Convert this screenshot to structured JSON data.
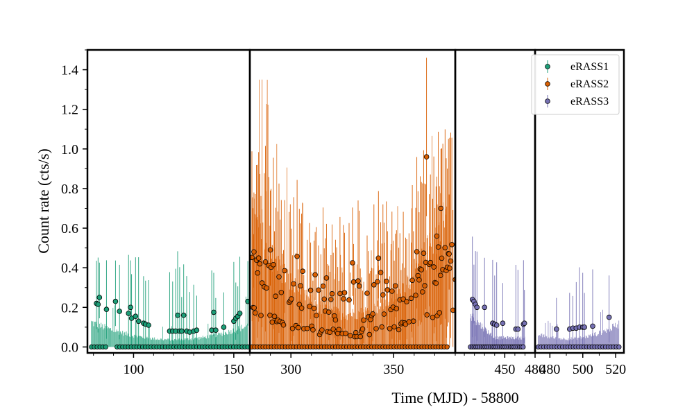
{
  "chart_data": {
    "type": "scatter",
    "title": "",
    "xlabel": "Time (MJD) - 58800",
    "ylabel": "Count rate (cts/s)",
    "ylim": [
      -0.03,
      1.5
    ],
    "yticks": [
      0.0,
      0.2,
      0.4,
      0.6,
      0.8,
      1.0,
      1.2,
      1.4
    ],
    "ytick_labels": [
      "0.0",
      "0.2",
      "0.4",
      "0.6",
      "0.8",
      "1.0",
      "1.2",
      "1.4"
    ],
    "grid": false,
    "legend_position": "top-right",
    "colors": {
      "eRASS1": "#1b9e77",
      "eRASS2": "#d95f02",
      "eRASS3": "#7570b3"
    },
    "panels": [
      {
        "series": "eRASS1",
        "xlim": [
          77,
          158
        ],
        "xticks": [
          100,
          150
        ],
        "xtick_labels": [
          "100",
          "150"
        ],
        "nonzero_points": [
          [
            81.5,
            0.22
          ],
          [
            82.3,
            0.215
          ],
          [
            83.0,
            0.25
          ],
          [
            86.5,
            0.19
          ],
          [
            91.0,
            0.23
          ],
          [
            93.0,
            0.18
          ],
          [
            97.5,
            0.17
          ],
          [
            98.5,
            0.2
          ],
          [
            99.0,
            0.145
          ],
          [
            101.0,
            0.155
          ],
          [
            102.5,
            0.13
          ],
          [
            105.0,
            0.12
          ],
          [
            106.0,
            0.115
          ],
          [
            107.5,
            0.11
          ],
          [
            118.0,
            0.08
          ],
          [
            119.5,
            0.08
          ],
          [
            121.0,
            0.08
          ],
          [
            122.0,
            0.16
          ],
          [
            123.0,
            0.08
          ],
          [
            124.0,
            0.08
          ],
          [
            125.0,
            0.16
          ],
          [
            126.5,
            0.08
          ],
          [
            128.0,
            0.075
          ],
          [
            130.0,
            0.08
          ],
          [
            131.5,
            0.085
          ],
          [
            139.0,
            0.085
          ],
          [
            140.0,
            0.175
          ],
          [
            141.0,
            0.085
          ],
          [
            145.0,
            0.1
          ],
          [
            150.0,
            0.13
          ],
          [
            151.0,
            0.145
          ],
          [
            152.0,
            0.155
          ],
          [
            153.0,
            0.17
          ],
          [
            157.0,
            0.23
          ]
        ],
        "zero_range": [
          79,
          157
        ],
        "zero_gap": [
          86.5,
          91
        ]
      },
      {
        "series": "eRASS2",
        "xlim": [
          280,
          380
        ],
        "xticks": [
          300,
          350
        ],
        "xtick_labels": [
          "300",
          "350"
        ],
        "peak_point": [
          366.0,
          0.96
        ],
        "notable_points": [
          [
            373.0,
            0.7
          ],
          [
            371.0,
            0.56
          ],
          [
            377.0,
            0.47
          ],
          [
            282.0,
            0.48
          ],
          [
            290.0,
            0.49
          ],
          [
            380.0,
            0.34
          ]
        ],
        "zero_range": [
          281,
          376
        ]
      },
      {
        "series": "eRASS3",
        "xlim": [
          401,
          480
        ],
        "xticks": [
          450,
          480
        ],
        "xtick_labels": [
          "450",
          "480"
        ],
        "nonzero_points": [
          [
            418.0,
            0.24
          ],
          [
            419.5,
            0.23
          ],
          [
            421.0,
            0.215
          ],
          [
            422.5,
            0.2
          ],
          [
            430.0,
            0.2
          ],
          [
            438.0,
            0.12
          ],
          [
            440.0,
            0.115
          ],
          [
            442.0,
            0.11
          ],
          [
            448.0,
            0.12
          ],
          [
            461.0,
            0.09
          ],
          [
            463.0,
            0.09
          ],
          [
            468.5,
            0.115
          ],
          [
            469.5,
            0.12
          ]
        ],
        "zero_range": [
          416,
          470
        ]
      },
      {
        "series": "eRASS3",
        "xlim": [
          471,
          525
        ],
        "xticks": [
          480,
          500,
          520
        ],
        "xtick_labels": [
          "480",
          "500",
          "520"
        ],
        "nonzero_points": [
          [
            484.0,
            0.09
          ],
          [
            492.0,
            0.09
          ],
          [
            494.0,
            0.095
          ],
          [
            496.0,
            0.095
          ],
          [
            498.0,
            0.1
          ],
          [
            500.0,
            0.1
          ],
          [
            501.0,
            0.1
          ],
          [
            506.0,
            0.105
          ],
          [
            516.0,
            0.15
          ]
        ],
        "zero_range": [
          473,
          522
        ]
      }
    ],
    "legend": [
      "eRASS1",
      "eRASS2",
      "eRASS3"
    ]
  }
}
